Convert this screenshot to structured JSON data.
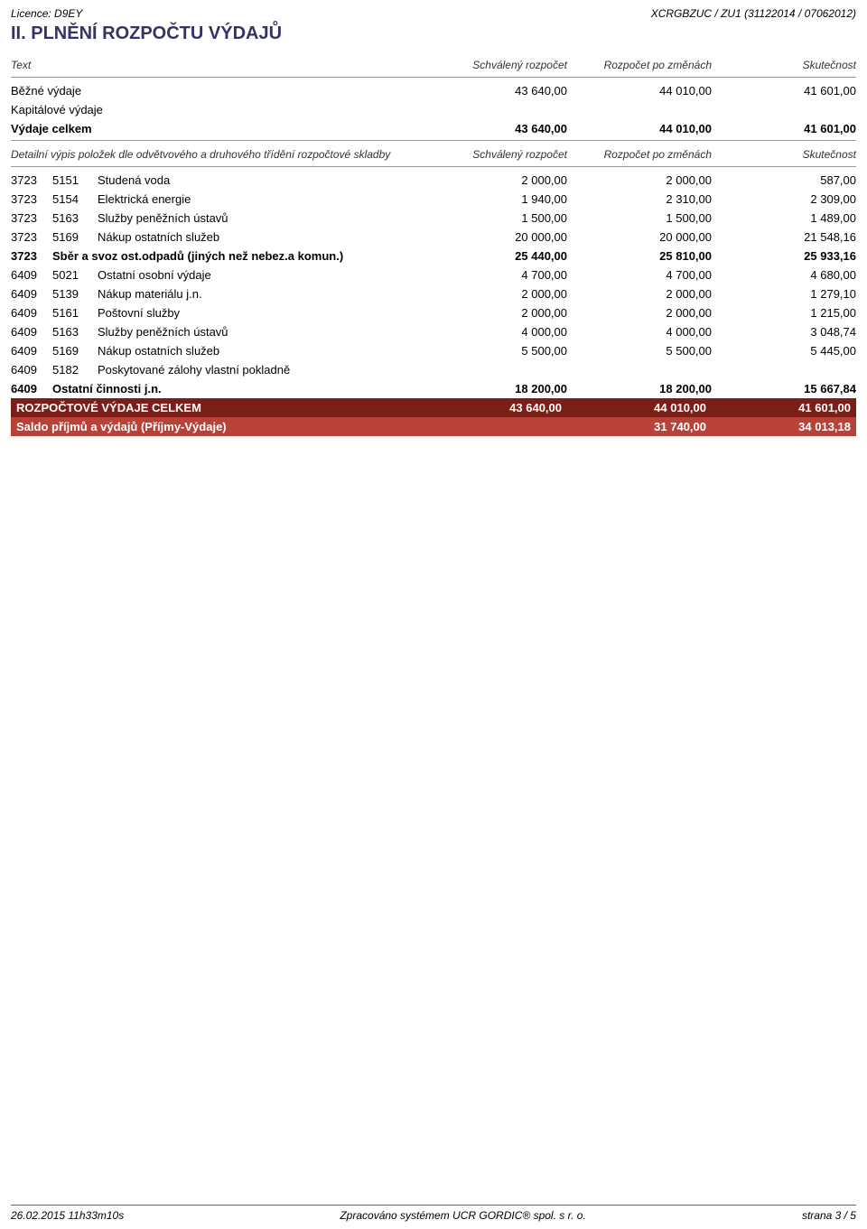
{
  "header": {
    "licence": "Licence: D9EY",
    "doc_code": "XCRGBZUC / ZU1 (31122014 / 07062012)",
    "title": "II. PLNĚNÍ ROZPOČTU VÝDAJŮ"
  },
  "columns": {
    "text": "Text",
    "col1": "Schválený rozpočet",
    "col2": "Rozpočet po změnách",
    "col3": "Skutečnost"
  },
  "summary_top": [
    {
      "label": "Běžné výdaje",
      "v1": "43 640,00",
      "v2": "44 010,00",
      "v3": "41 601,00"
    },
    {
      "label": "Kapitálové výdaje",
      "v1": "",
      "v2": "",
      "v3": ""
    },
    {
      "label": "Výdaje celkem",
      "v1": "43 640,00",
      "v2": "44 010,00",
      "v3": "41 601,00"
    }
  ],
  "detail_label": "Detailní výpis položek dle odvětvového a druhového třídění rozpočtové skladby",
  "detail_rows": [
    {
      "c1": "3723",
      "c2": "5151",
      "desc": "Studená voda",
      "v1": "2 000,00",
      "v2": "2 000,00",
      "v3": "587,00"
    },
    {
      "c1": "3723",
      "c2": "5154",
      "desc": "Elektrická energie",
      "v1": "1 940,00",
      "v2": "2 310,00",
      "v3": "2 309,00"
    },
    {
      "c1": "3723",
      "c2": "5163",
      "desc": "Služby peněžních ústavů",
      "v1": "1 500,00",
      "v2": "1 500,00",
      "v3": "1 489,00"
    },
    {
      "c1": "3723",
      "c2": "5169",
      "desc": "Nákup ostatních služeb",
      "v1": "20 000,00",
      "v2": "20 000,00",
      "v3": "21 548,16"
    }
  ],
  "subtotal_3723": {
    "c1": "3723",
    "desc": "Sběr a svoz ost.odpadů (jiných než nebez.a komun.)",
    "v1": "25 440,00",
    "v2": "25 810,00",
    "v3": "25 933,16"
  },
  "detail_rows_6409": [
    {
      "c1": "6409",
      "c2": "5021",
      "desc": "Ostatní osobní výdaje",
      "v1": "4 700,00",
      "v2": "4 700,00",
      "v3": "4 680,00"
    },
    {
      "c1": "6409",
      "c2": "5139",
      "desc": "Nákup materiálu j.n.",
      "v1": "2 000,00",
      "v2": "2 000,00",
      "v3": "1 279,10"
    },
    {
      "c1": "6409",
      "c2": "5161",
      "desc": "Poštovní služby",
      "v1": "2 000,00",
      "v2": "2 000,00",
      "v3": "1 215,00"
    },
    {
      "c1": "6409",
      "c2": "5163",
      "desc": "Služby peněžních ústavů",
      "v1": "4 000,00",
      "v2": "4 000,00",
      "v3": "3 048,74"
    },
    {
      "c1": "6409",
      "c2": "5169",
      "desc": "Nákup ostatních služeb",
      "v1": "5 500,00",
      "v2": "5 500,00",
      "v3": "5 445,00"
    },
    {
      "c1": "6409",
      "c2": "5182",
      "desc": "Poskytované zálohy vlastní pokladně",
      "v1": "",
      "v2": "",
      "v3": ""
    }
  ],
  "subtotal_6409": {
    "c1": "6409",
    "desc": "Ostatní činnosti j.n.",
    "v1": "18 200,00",
    "v2": "18 200,00",
    "v3": "15 667,84"
  },
  "total_bar": {
    "label": "ROZPOČTOVÉ VÝDAJE CELKEM",
    "v1": "43 640,00",
    "v2": "44 010,00",
    "v3": "41 601,00"
  },
  "saldo_bar": {
    "label": "Saldo příjmů a výdajů (Příjmy-Výdaje)",
    "v1": "",
    "v2": "31 740,00",
    "v3": "34 013,18"
  },
  "footer": {
    "timestamp": "26.02.2015 11h33m10s",
    "system": "Zpracováno systémem  UCR GORDIC® spol.  s  r.  o.",
    "page": "strana 3 / 5"
  },
  "colors": {
    "title": "#333366",
    "bar_dark": "#7a1f18",
    "bar_light": "#b84238",
    "text": "#000000",
    "background": "#ffffff"
  }
}
